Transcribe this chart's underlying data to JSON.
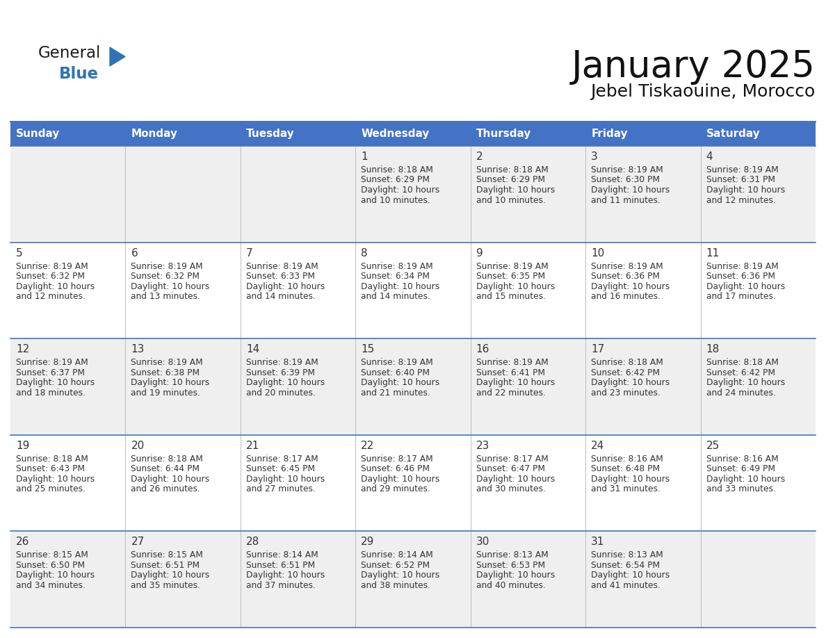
{
  "title": "January 2025",
  "subtitle": "Jebel Tiskaouine, Morocco",
  "days_of_week": [
    "Sunday",
    "Monday",
    "Tuesday",
    "Wednesday",
    "Thursday",
    "Friday",
    "Saturday"
  ],
  "header_bg": "#4472C4",
  "header_text_color": "#FFFFFF",
  "row_bg_even": "#EFEFEF",
  "row_bg_odd": "#FFFFFF",
  "day_num_bg_even": "#E8E8E8",
  "day_num_bg_odd": "#F8F8F8",
  "cell_text_color": "#333333",
  "day_number_color": "#333333",
  "line_color": "#4472C4",
  "logo_general_color": "#1a1a1a",
  "logo_blue_color": "#2E74B5",
  "logo_triangle_color": "#2E74B5",
  "calendar_data": [
    [
      null,
      null,
      null,
      {
        "day": 1,
        "sunrise": "8:18 AM",
        "sunset": "6:29 PM",
        "daylight_h": "10 hours",
        "daylight_m": "and 10 minutes."
      },
      {
        "day": 2,
        "sunrise": "8:18 AM",
        "sunset": "6:29 PM",
        "daylight_h": "10 hours",
        "daylight_m": "and 10 minutes."
      },
      {
        "day": 3,
        "sunrise": "8:19 AM",
        "sunset": "6:30 PM",
        "daylight_h": "10 hours",
        "daylight_m": "and 11 minutes."
      },
      {
        "day": 4,
        "sunrise": "8:19 AM",
        "sunset": "6:31 PM",
        "daylight_h": "10 hours",
        "daylight_m": "and 12 minutes."
      }
    ],
    [
      {
        "day": 5,
        "sunrise": "8:19 AM",
        "sunset": "6:32 PM",
        "daylight_h": "10 hours",
        "daylight_m": "and 12 minutes."
      },
      {
        "day": 6,
        "sunrise": "8:19 AM",
        "sunset": "6:32 PM",
        "daylight_h": "10 hours",
        "daylight_m": "and 13 minutes."
      },
      {
        "day": 7,
        "sunrise": "8:19 AM",
        "sunset": "6:33 PM",
        "daylight_h": "10 hours",
        "daylight_m": "and 14 minutes."
      },
      {
        "day": 8,
        "sunrise": "8:19 AM",
        "sunset": "6:34 PM",
        "daylight_h": "10 hours",
        "daylight_m": "and 14 minutes."
      },
      {
        "day": 9,
        "sunrise": "8:19 AM",
        "sunset": "6:35 PM",
        "daylight_h": "10 hours",
        "daylight_m": "and 15 minutes."
      },
      {
        "day": 10,
        "sunrise": "8:19 AM",
        "sunset": "6:36 PM",
        "daylight_h": "10 hours",
        "daylight_m": "and 16 minutes."
      },
      {
        "day": 11,
        "sunrise": "8:19 AM",
        "sunset": "6:36 PM",
        "daylight_h": "10 hours",
        "daylight_m": "and 17 minutes."
      }
    ],
    [
      {
        "day": 12,
        "sunrise": "8:19 AM",
        "sunset": "6:37 PM",
        "daylight_h": "10 hours",
        "daylight_m": "and 18 minutes."
      },
      {
        "day": 13,
        "sunrise": "8:19 AM",
        "sunset": "6:38 PM",
        "daylight_h": "10 hours",
        "daylight_m": "and 19 minutes."
      },
      {
        "day": 14,
        "sunrise": "8:19 AM",
        "sunset": "6:39 PM",
        "daylight_h": "10 hours",
        "daylight_m": "and 20 minutes."
      },
      {
        "day": 15,
        "sunrise": "8:19 AM",
        "sunset": "6:40 PM",
        "daylight_h": "10 hours",
        "daylight_m": "and 21 minutes."
      },
      {
        "day": 16,
        "sunrise": "8:19 AM",
        "sunset": "6:41 PM",
        "daylight_h": "10 hours",
        "daylight_m": "and 22 minutes."
      },
      {
        "day": 17,
        "sunrise": "8:18 AM",
        "sunset": "6:42 PM",
        "daylight_h": "10 hours",
        "daylight_m": "and 23 minutes."
      },
      {
        "day": 18,
        "sunrise": "8:18 AM",
        "sunset": "6:42 PM",
        "daylight_h": "10 hours",
        "daylight_m": "and 24 minutes."
      }
    ],
    [
      {
        "day": 19,
        "sunrise": "8:18 AM",
        "sunset": "6:43 PM",
        "daylight_h": "10 hours",
        "daylight_m": "and 25 minutes."
      },
      {
        "day": 20,
        "sunrise": "8:18 AM",
        "sunset": "6:44 PM",
        "daylight_h": "10 hours",
        "daylight_m": "and 26 minutes."
      },
      {
        "day": 21,
        "sunrise": "8:17 AM",
        "sunset": "6:45 PM",
        "daylight_h": "10 hours",
        "daylight_m": "and 27 minutes."
      },
      {
        "day": 22,
        "sunrise": "8:17 AM",
        "sunset": "6:46 PM",
        "daylight_h": "10 hours",
        "daylight_m": "and 29 minutes."
      },
      {
        "day": 23,
        "sunrise": "8:17 AM",
        "sunset": "6:47 PM",
        "daylight_h": "10 hours",
        "daylight_m": "and 30 minutes."
      },
      {
        "day": 24,
        "sunrise": "8:16 AM",
        "sunset": "6:48 PM",
        "daylight_h": "10 hours",
        "daylight_m": "and 31 minutes."
      },
      {
        "day": 25,
        "sunrise": "8:16 AM",
        "sunset": "6:49 PM",
        "daylight_h": "10 hours",
        "daylight_m": "and 33 minutes."
      }
    ],
    [
      {
        "day": 26,
        "sunrise": "8:15 AM",
        "sunset": "6:50 PM",
        "daylight_h": "10 hours",
        "daylight_m": "and 34 minutes."
      },
      {
        "day": 27,
        "sunrise": "8:15 AM",
        "sunset": "6:51 PM",
        "daylight_h": "10 hours",
        "daylight_m": "and 35 minutes."
      },
      {
        "day": 28,
        "sunrise": "8:14 AM",
        "sunset": "6:51 PM",
        "daylight_h": "10 hours",
        "daylight_m": "and 37 minutes."
      },
      {
        "day": 29,
        "sunrise": "8:14 AM",
        "sunset": "6:52 PM",
        "daylight_h": "10 hours",
        "daylight_m": "and 38 minutes."
      },
      {
        "day": 30,
        "sunrise": "8:13 AM",
        "sunset": "6:53 PM",
        "daylight_h": "10 hours",
        "daylight_m": "and 40 minutes."
      },
      {
        "day": 31,
        "sunrise": "8:13 AM",
        "sunset": "6:54 PM",
        "daylight_h": "10 hours",
        "daylight_m": "and 41 minutes."
      },
      null
    ]
  ]
}
